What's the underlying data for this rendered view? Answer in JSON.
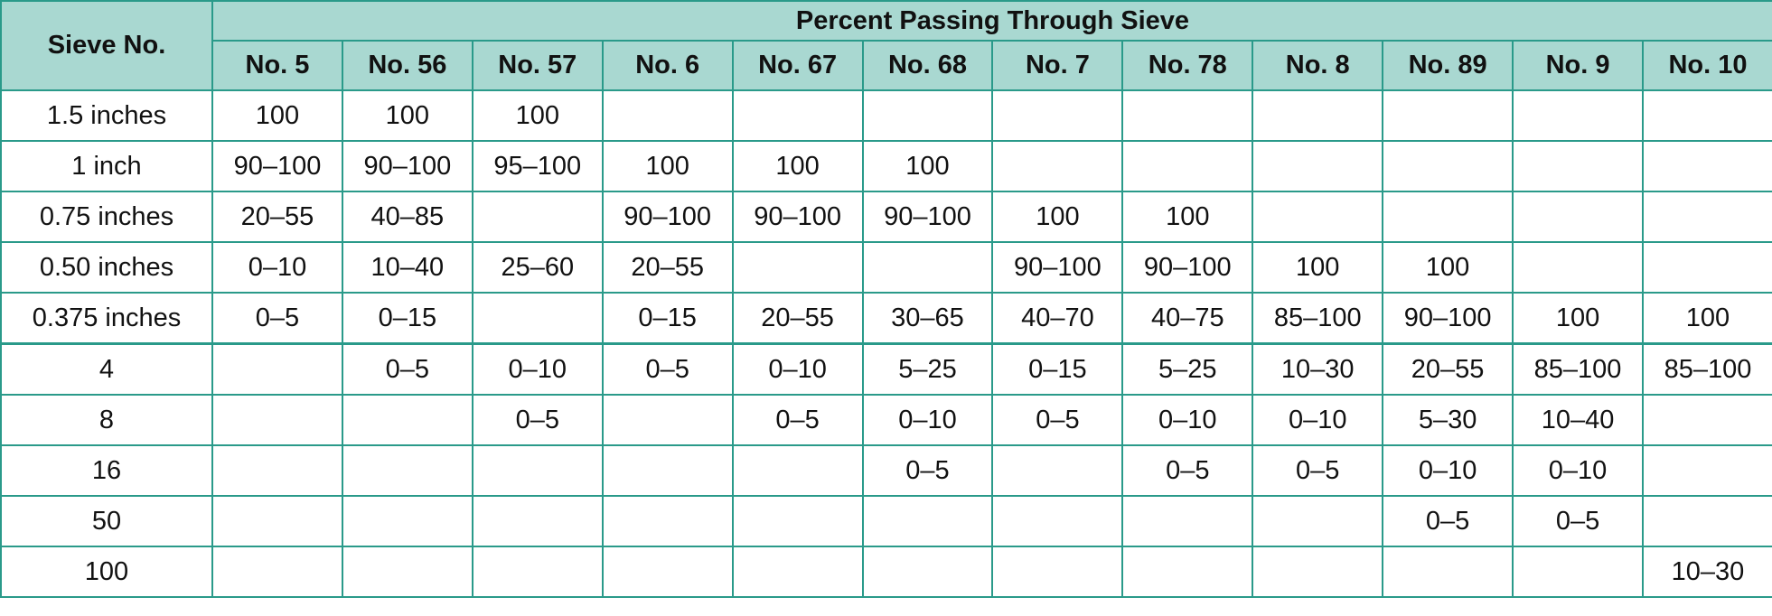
{
  "table": {
    "row_header": "Sieve No.",
    "group_header": "Percent Passing Through Sieve",
    "columns": [
      "No. 5",
      "No. 56",
      "No. 57",
      "No. 6",
      "No. 67",
      "No. 68",
      "No. 7",
      "No. 78",
      "No. 8",
      "No. 89",
      "No. 9",
      "No. 10"
    ],
    "rows": [
      {
        "sieve": "1.5 inches",
        "values": [
          "100",
          "100",
          "100",
          null,
          null,
          null,
          null,
          null,
          null,
          null,
          null,
          null
        ]
      },
      {
        "sieve": "1 inch",
        "values": [
          "90–100",
          "90–100",
          "95–100",
          "100",
          "100",
          "100",
          null,
          null,
          null,
          null,
          null,
          null
        ]
      },
      {
        "sieve": "0.75 inches",
        "values": [
          "20–55",
          "40–85",
          null,
          "90–100",
          "90–100",
          "90–100",
          "100",
          "100",
          null,
          null,
          null,
          null
        ]
      },
      {
        "sieve": "0.50 inches",
        "values": [
          "0–10",
          "10–40",
          "25–60",
          "20–55",
          null,
          null,
          "90–100",
          "90–100",
          "100",
          "100",
          null,
          null
        ]
      },
      {
        "sieve": "0.375 inches",
        "values": [
          "0–5",
          "0–15",
          null,
          "0–15",
          "20–55",
          "30–65",
          "40–70",
          "40–75",
          "85–100",
          "90–100",
          "100",
          "100"
        ]
      },
      {
        "sieve": "4",
        "values": [
          null,
          "0–5",
          "0–10",
          "0–5",
          "0–10",
          "5–25",
          "0–15",
          "5–25",
          "10–30",
          "20–55",
          "85–100",
          "85–100"
        ]
      },
      {
        "sieve": "8",
        "values": [
          null,
          null,
          "0–5",
          null,
          "0–5",
          "0–10",
          "0–5",
          "0–10",
          "0–10",
          "5–30",
          "10–40",
          null
        ]
      },
      {
        "sieve": "16",
        "values": [
          null,
          null,
          null,
          null,
          null,
          "0–5",
          null,
          "0–5",
          "0–5",
          "0–10",
          "0–10",
          null
        ]
      },
      {
        "sieve": "50",
        "values": [
          null,
          null,
          null,
          null,
          null,
          null,
          null,
          null,
          null,
          "0–5",
          "0–5",
          null
        ]
      },
      {
        "sieve": "100",
        "values": [
          null,
          null,
          null,
          null,
          null,
          null,
          null,
          null,
          null,
          null,
          null,
          "10–30"
        ]
      }
    ]
  }
}
